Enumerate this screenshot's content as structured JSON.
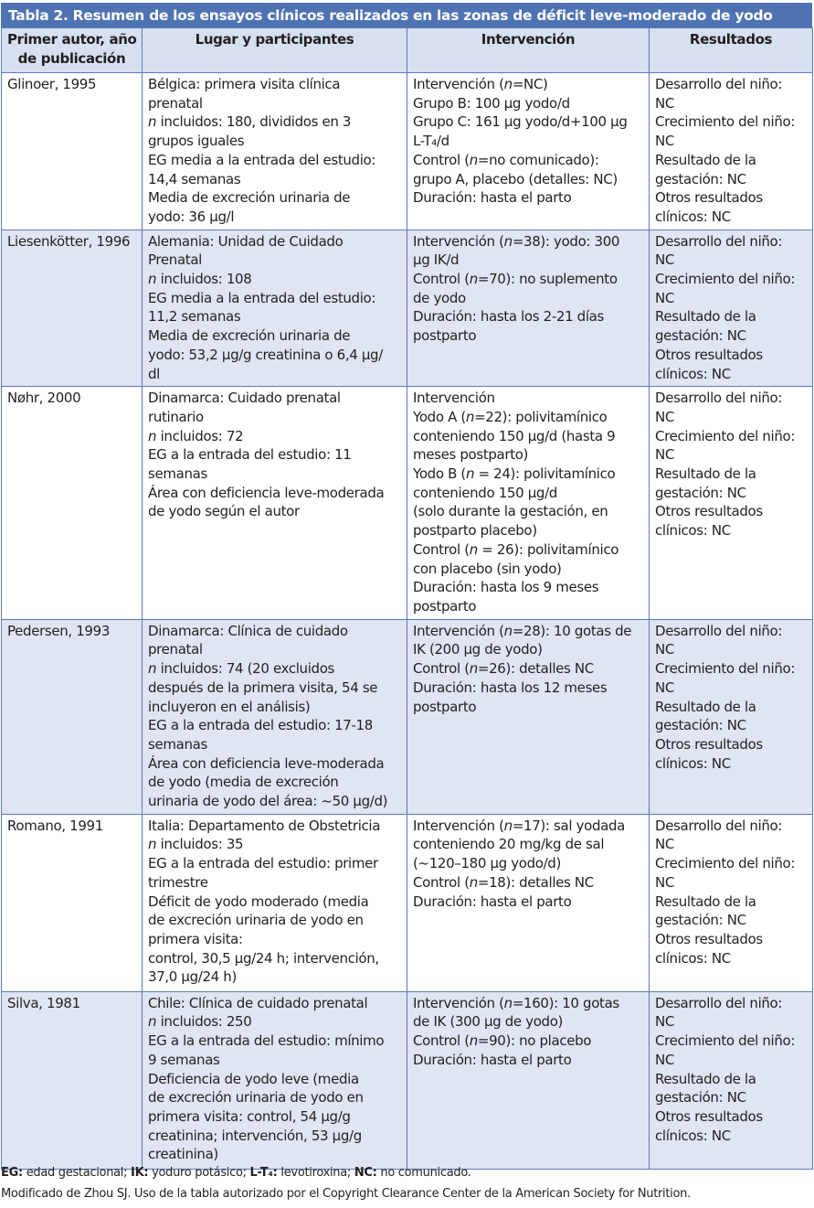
{
  "title": "Tabla 2. Resumen de los ensayos clínicos realizados en las zonas de déficit leve-moderado de yodo",
  "headers": [
    [
      "Primer autor, año",
      "de publicación"
    ],
    [
      "Lugar y participantes"
    ],
    [
      "Intervención"
    ],
    [
      "Resultados"
    ]
  ],
  "colors": {
    "title_bg": "#4f73b2",
    "header_bg": "#d7e0f0",
    "alt_row_bg": "#dfe5f3",
    "border": "#5a7ab8"
  },
  "rows": [
    {
      "author": [
        "Glinoer, 1995"
      ],
      "place": [
        "Bélgica: primera visita clínica",
        "prenatal",
        "n incluidos: 180, divididos en 3",
        "grupos iguales",
        "EG media a la entrada del estudio:",
        "14,4 semanas",
        "Media de excreción urinaria de",
        "yodo: 36 µg/l"
      ],
      "intervention": [
        "Intervención (n=NC)",
        "Grupo B: 100 µg yodo/d",
        "Grupo C: 161 µg yodo/d+100 µg",
        "L-T₄/d",
        "Control (n=no comunicado):",
        "grupo A, placebo (detalles: NC)",
        "Duración: hasta el parto"
      ],
      "results": [
        "Desarrollo del niño:",
        "NC",
        "Crecimiento del niño:",
        "NC",
        "Resultado de la",
        "gestación: NC",
        "Otros resultados",
        "clínicos: NC"
      ]
    },
    {
      "author": [
        "Liesenkötter, 1996"
      ],
      "place": [
        "Alemania: Unidad de Cuidado",
        "Prenatal",
        "n incluidos: 108",
        "EG media a la entrada del estudio:",
        "11,2 semanas",
        "Media de excreción urinaria de",
        "yodo: 53,2 µg/g creatinina o 6,4 µg/",
        "dl"
      ],
      "intervention": [
        "Intervención (n=38): yodo: 300",
        "µg IK/d",
        "Control (n=70): no suplemento",
        "de yodo",
        "Duración: hasta los 2-21 días",
        "postparto"
      ],
      "results": [
        "Desarrollo del niño:",
        "NC",
        "Crecimiento del niño:",
        "NC",
        "Resultado de la",
        "gestación: NC",
        "Otros resultados",
        "clínicos: NC"
      ]
    },
    {
      "author": [
        "Nøhr, 2000"
      ],
      "place": [
        "Dinamarca: Cuidado prenatal",
        "rutinario",
        "n incluidos: 72",
        "EG a la entrada del estudio: 11",
        "semanas",
        "Área con deficiencia leve-moderada",
        "de yodo según el autor"
      ],
      "intervention": [
        "Intervención",
        "Yodo A (n=22): polivitamínico",
        "conteniendo 150 µg/d (hasta 9",
        "meses postparto)",
        "Yodo B (n = 24): polivitamínico",
        "conteniendo 150 µg/d",
        "(solo durante la gestación, en",
        "postparto placebo)",
        "Control (n = 26): polivitamínico",
        "con placebo (sin yodo)",
        "Duración: hasta los 9 meses",
        "postparto"
      ],
      "results": [
        "Desarrollo del niño:",
        "NC",
        "Crecimiento del niño:",
        "NC",
        "Resultado de la",
        "gestación: NC",
        "Otros resultados",
        "clínicos: NC"
      ]
    },
    {
      "author": [
        "Pedersen, 1993"
      ],
      "place": [
        "Dinamarca: Clínica de cuidado",
        "prenatal",
        "n incluidos: 74 (20 excluidos",
        "después de la primera visita, 54 se",
        "incluyeron en el análisis)",
        "EG a la entrada del estudio: 17-18",
        "semanas",
        "Área con deficiencia leve-moderada",
        "de yodo (media de excreción",
        "urinaria de yodo del área: ~50 µg/d)"
      ],
      "intervention": [
        "Intervención (n=28): 10 gotas de",
        "IK (200 µg de yodo)",
        "Control (n=26): detalles NC",
        "Duración: hasta los 12 meses",
        "postparto"
      ],
      "results": [
        "Desarrollo del niño:",
        "NC",
        "Crecimiento del niño:",
        "NC",
        "Resultado de la",
        "gestación: NC",
        "Otros resultados",
        "clínicos: NC"
      ]
    },
    {
      "author": [
        "Romano, 1991"
      ],
      "place": [
        "Italia: Departamento de Obstetricia",
        "n incluidos: 35",
        "EG a la entrada del estudio: primer",
        "trimestre",
        "Déficit de yodo moderado (media",
        "de excreción urinaria de yodo en",
        "primera visita:",
        "control, 30,5 µg/24 h; intervención,",
        "37,0 µg/24 h)"
      ],
      "intervention": [
        "Intervención (n=17): sal yodada",
        "conteniendo 20 mg/kg de sal",
        "(~120–180 µg yodo/d)",
        "Control (n=18): detalles NC",
        "Duración: hasta el parto"
      ],
      "results": [
        "Desarrollo del niño:",
        "NC",
        "Crecimiento del niño:",
        "NC",
        "Resultado de la",
        "gestación: NC",
        "Otros resultados",
        "clínicos: NC"
      ]
    },
    {
      "author": [
        "Silva, 1981"
      ],
      "place": [
        "Chile: Clínica de cuidado prenatal",
        "n incluidos: 250",
        "EG a la entrada del estudio: mínimo",
        "9 semanas",
        "Deficiencia de yodo leve (media",
        "de excreción urinaria de yodo en",
        "primera visita: control, 54 µg/g",
        "creatinina; intervención, 53 µg/g",
        "creatinina)"
      ],
      "intervention": [
        "Intervención (n=160): 10 gotas",
        "de IK (300 µg de yodo)",
        "Control (n=90): no placebo",
        "Duración: hasta el parto"
      ],
      "results": [
        "Desarrollo del niño:",
        "NC",
        "Crecimiento del niño:",
        "NC",
        "Resultado de la",
        "gestación: NC",
        "Otros resultados",
        "clínicos: NC"
      ]
    }
  ],
  "footnote_abbrev": [
    {
      "term": "EG:",
      "def": " edad gestacional; "
    },
    {
      "term": "IK:",
      "def": " yoduro potásico; "
    },
    {
      "term": "L-T₄:",
      "def": " levotiroxina; "
    },
    {
      "term": "NC:",
      "def": " no comunicado."
    }
  ],
  "footnote_source": "Modificado de Zhou SJ. Uso de la tabla autorizado por el Copyright Clearance Center de la American Society for Nutrition."
}
